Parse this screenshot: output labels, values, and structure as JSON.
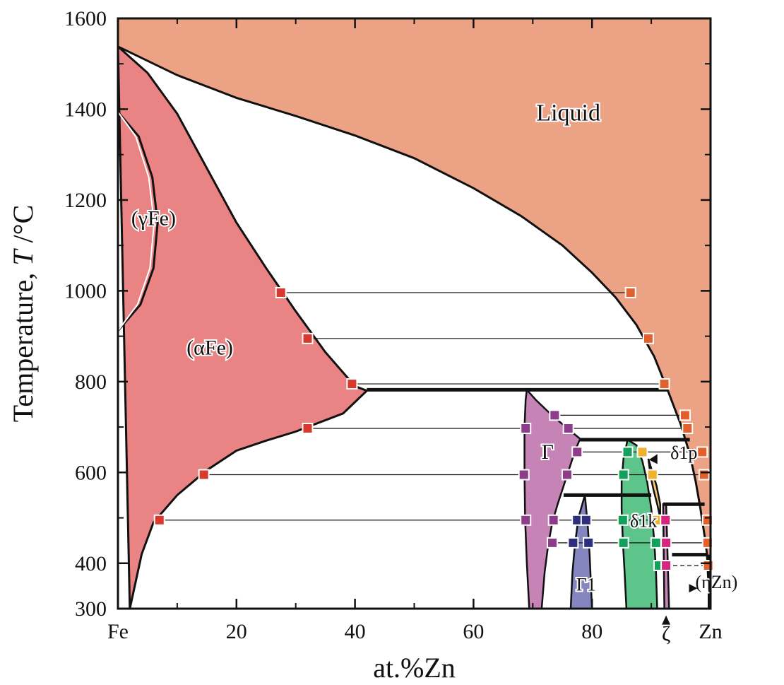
{
  "chart_data": {
    "type": "phase-diagram",
    "system": "Fe-Zn",
    "xlabel": "at.%Zn",
    "ylabel_prefix": "Temperature, ",
    "ylabel_symbol": "T",
    "ylabel_unit": " /°C",
    "xlim": [
      0,
      100
    ],
    "ylim": [
      300,
      1600
    ],
    "x_ticks": [
      {
        "value": 0,
        "label": "Fe"
      },
      {
        "value": 20,
        "label": "20"
      },
      {
        "value": 40,
        "label": "40"
      },
      {
        "value": 60,
        "label": "60"
      },
      {
        "value": 80,
        "label": "80"
      },
      {
        "value": 100,
        "label": "Zn"
      }
    ],
    "x_minor_ticks": [
      10,
      30,
      50,
      70,
      90
    ],
    "y_ticks": [
      {
        "value": 300,
        "label": "300"
      },
      {
        "value": 400,
        "label": "400"
      },
      {
        "value": 600,
        "label": "600"
      },
      {
        "value": 800,
        "label": "800"
      },
      {
        "value": 1000,
        "label": "1000"
      },
      {
        "value": 1200,
        "label": "1200"
      },
      {
        "value": 1400,
        "label": "1400"
      },
      {
        "value": 1600,
        "label": "1600"
      }
    ],
    "y_minor_ticks": [
      500,
      700,
      900,
      1100,
      1300,
      1500
    ],
    "colors": {
      "liquid": "#eca385",
      "alpha_fe": "#e98384",
      "gamma": "#c583b6",
      "gamma1": "#8585bf",
      "delta": "#5ec58a",
      "zeta": "#f3c877",
      "eta": "#eca385",
      "marker_red": "#d9382c",
      "marker_orange": "#e2602c",
      "marker_purple": "#8e3b8a",
      "marker_navy": "#2e2f7c",
      "marker_green": "#13a05c",
      "marker_yellow": "#f0b22e",
      "marker_pink": "#d6267f"
    },
    "phases": [
      {
        "label": "Liquid",
        "x": 76,
        "T": 1375,
        "size": "big"
      },
      {
        "label": "(γFe)",
        "x": 6,
        "T": 1145,
        "size": "mid"
      },
      {
        "label": "(αFe)",
        "x": 15.5,
        "T": 860,
        "size": "mid"
      },
      {
        "label": "Γ",
        "x": 72.5,
        "T": 630,
        "size": "mid"
      },
      {
        "label": "Γ1",
        "x": 79,
        "T": 340,
        "size": "small"
      },
      {
        "label": "δ1p",
        "x": 95.5,
        "T": 630,
        "size": "small"
      },
      {
        "label": "δ1k",
        "x": 88.7,
        "T": 480,
        "size": "small"
      },
      {
        "label": "ζ",
        "x": 92.5,
        "T": 230,
        "size": "mid"
      },
      {
        "label": "(ηZn)",
        "x": 101,
        "T": 345,
        "size": "small"
      }
    ],
    "liquidus": [
      [
        0,
        1538
      ],
      [
        10,
        1475
      ],
      [
        20,
        1425
      ],
      [
        30,
        1385
      ],
      [
        40,
        1342
      ],
      [
        50,
        1292
      ],
      [
        60,
        1226
      ],
      [
        68,
        1165
      ],
      [
        75,
        1100
      ],
      [
        80,
        1040
      ],
      [
        84,
        985
      ],
      [
        87.5,
        925
      ],
      [
        90.5,
        855
      ],
      [
        92.8,
        780
      ],
      [
        95,
        705
      ],
      [
        96.5,
        640
      ],
      [
        97.5,
        580
      ],
      [
        98.3,
        520
      ],
      [
        99,
        460
      ],
      [
        99.4,
        420
      ],
      [
        99.7,
        340
      ],
      [
        99.8,
        300
      ]
    ],
    "alpha_solvus": [
      [
        0,
        1538
      ],
      [
        5,
        1480
      ],
      [
        10,
        1390
      ],
      [
        15,
        1270
      ],
      [
        20,
        1150
      ],
      [
        25,
        1050
      ],
      [
        30,
        955
      ],
      [
        35,
        865
      ],
      [
        40,
        790
      ],
      [
        42,
        780
      ],
      [
        38,
        730
      ],
      [
        30,
        690
      ],
      [
        25,
        670
      ],
      [
        20,
        648
      ],
      [
        15,
        605
      ],
      [
        10,
        550
      ],
      [
        6,
        490
      ],
      [
        4,
        420
      ],
      [
        3,
        360
      ],
      [
        2,
        300
      ]
    ],
    "gamma_loop_outer": [
      [
        0,
        1394
      ],
      [
        3.5,
        1340
      ],
      [
        5.8,
        1250
      ],
      [
        6.7,
        1150
      ],
      [
        6.0,
        1050
      ],
      [
        3.8,
        970
      ],
      [
        0,
        912
      ]
    ],
    "gamma_loop_inner": [
      [
        0,
        1394
      ],
      [
        3.0,
        1340
      ],
      [
        5.2,
        1250
      ],
      [
        6.1,
        1150
      ],
      [
        5.4,
        1050
      ],
      [
        3.3,
        970
      ],
      [
        0,
        912
      ]
    ],
    "gamma_region": [
      [
        69.0,
        782
      ],
      [
        70.5,
        760
      ],
      [
        72.5,
        735
      ],
      [
        74.5,
        712
      ],
      [
        76.5,
        690
      ],
      [
        78.0,
        674
      ],
      [
        77.2,
        650
      ],
      [
        76.2,
        610
      ],
      [
        75.2,
        570
      ],
      [
        74.2,
        530
      ],
      [
        73.3,
        490
      ],
      [
        72.6,
        440
      ],
      [
        72.0,
        380
      ],
      [
        71.5,
        300
      ],
      [
        69.4,
        300
      ],
      [
        69.0,
        400
      ],
      [
        68.7,
        500
      ],
      [
        68.6,
        600
      ],
      [
        68.6,
        700
      ],
      [
        68.8,
        760
      ]
    ],
    "gamma1_region": [
      [
        78.8,
        550
      ],
      [
        79.3,
        480
      ],
      [
        79.6,
        420
      ],
      [
        79.8,
        360
      ],
      [
        80.0,
        300
      ],
      [
        76.4,
        300
      ],
      [
        76.7,
        380
      ],
      [
        77.1,
        440
      ],
      [
        77.7,
        500
      ]
    ],
    "delta_region": [
      [
        86.0,
        672
      ],
      [
        87.5,
        660
      ],
      [
        88.5,
        625
      ],
      [
        89.3,
        580
      ],
      [
        90.0,
        520
      ],
      [
        90.5,
        450
      ],
      [
        90.8,
        380
      ],
      [
        91.0,
        300
      ],
      [
        85.8,
        300
      ],
      [
        85.5,
        380
      ],
      [
        85.2,
        450
      ],
      [
        85.0,
        520
      ],
      [
        85.0,
        580
      ],
      [
        85.3,
        630
      ]
    ],
    "zeta_region": [
      [
        89.5,
        630
      ],
      [
        90.2,
        600
      ],
      [
        90.9,
        570
      ],
      [
        91.5,
        530
      ],
      [
        91.5,
        500
      ],
      [
        91.0,
        530
      ],
      [
        90.4,
        560
      ],
      [
        89.9,
        590
      ]
    ],
    "eta_sliver": [
      [
        92.5,
        530
      ],
      [
        93.0,
        300
      ],
      [
        92.2,
        300
      ],
      [
        92.0,
        530
      ]
    ],
    "invariants": [
      {
        "name": "peritectic",
        "T": 782,
        "x1": 42,
        "x2": 92.8
      },
      {
        "name": "peritectic",
        "T": 672,
        "x1": 78.0,
        "x2": 96.5
      },
      {
        "name": "peritectic",
        "T": 550,
        "x1": 75.2,
        "x2": 90.0
      },
      {
        "name": "peritectic",
        "T": 530,
        "x1": 92.0,
        "x2": 99.0
      },
      {
        "name": "eutectic",
        "T": 419,
        "x1": 93.5,
        "x2": 99.4
      }
    ],
    "tielines": [
      {
        "T": 996,
        "x1": 27.5,
        "x2": 86.5
      },
      {
        "T": 895,
        "x1": 32.0,
        "x2": 89.5
      },
      {
        "T": 795,
        "x1": 39.5,
        "x2": 92.2
      },
      {
        "T": 726,
        "x1": 73.7,
        "x2": 95.7
      },
      {
        "T": 697,
        "x1": 32.0,
        "x2": 68.8
      },
      {
        "T": 697,
        "x1": 76.0,
        "x2": 96.1
      },
      {
        "T": 645,
        "x1": 77.5,
        "x2": 98.6
      },
      {
        "T": 595,
        "x1": 14.5,
        "x2": 68.5
      },
      {
        "T": 595,
        "x1": 75.8,
        "x2": 98.9
      },
      {
        "T": 495,
        "x1": 7.0,
        "x2": 68.8
      },
      {
        "T": 495,
        "x1": 73.5,
        "x2": 99.5
      },
      {
        "T": 445,
        "x1": 73.3,
        "x2": 99.5
      },
      {
        "T": 395,
        "x1": 91.3,
        "x2": 99.6,
        "dashed": true
      }
    ],
    "points": [
      {
        "x": 27.5,
        "T": 996,
        "c": "marker_red"
      },
      {
        "x": 86.5,
        "T": 996,
        "c": "marker_orange"
      },
      {
        "x": 32.0,
        "T": 895,
        "c": "marker_red"
      },
      {
        "x": 89.5,
        "T": 895,
        "c": "marker_orange"
      },
      {
        "x": 39.5,
        "T": 795,
        "c": "marker_red"
      },
      {
        "x": 92.2,
        "T": 795,
        "c": "marker_orange"
      },
      {
        "x": 73.7,
        "T": 726,
        "c": "marker_purple"
      },
      {
        "x": 95.7,
        "T": 726,
        "c": "marker_orange"
      },
      {
        "x": 32.0,
        "T": 697,
        "c": "marker_red"
      },
      {
        "x": 68.8,
        "T": 697,
        "c": "marker_purple"
      },
      {
        "x": 76.0,
        "T": 697,
        "c": "marker_purple"
      },
      {
        "x": 96.1,
        "T": 697,
        "c": "marker_orange"
      },
      {
        "x": 77.5,
        "T": 645,
        "c": "marker_purple"
      },
      {
        "x": 86.0,
        "T": 645,
        "c": "marker_green"
      },
      {
        "x": 88.5,
        "T": 645,
        "c": "marker_yellow"
      },
      {
        "x": 98.6,
        "T": 645,
        "c": "marker_orange"
      },
      {
        "x": 14.5,
        "T": 595,
        "c": "marker_red"
      },
      {
        "x": 68.5,
        "T": 595,
        "c": "marker_purple"
      },
      {
        "x": 75.8,
        "T": 595,
        "c": "marker_purple"
      },
      {
        "x": 85.3,
        "T": 595,
        "c": "marker_green"
      },
      {
        "x": 90.2,
        "T": 595,
        "c": "marker_yellow"
      },
      {
        "x": 98.9,
        "T": 595,
        "c": "marker_orange"
      },
      {
        "x": 7.0,
        "T": 495,
        "c": "marker_red"
      },
      {
        "x": 68.8,
        "T": 495,
        "c": "marker_purple"
      },
      {
        "x": 73.5,
        "T": 495,
        "c": "marker_purple"
      },
      {
        "x": 77.5,
        "T": 495,
        "c": "marker_navy"
      },
      {
        "x": 79.0,
        "T": 495,
        "c": "marker_navy"
      },
      {
        "x": 85.2,
        "T": 495,
        "c": "marker_green"
      },
      {
        "x": 91.0,
        "T": 495,
        "c": "marker_yellow"
      },
      {
        "x": 92.4,
        "T": 495,
        "c": "marker_pink"
      },
      {
        "x": 99.5,
        "T": 495,
        "c": "marker_orange"
      },
      {
        "x": 73.3,
        "T": 445,
        "c": "marker_purple"
      },
      {
        "x": 76.8,
        "T": 445,
        "c": "marker_navy"
      },
      {
        "x": 79.4,
        "T": 445,
        "c": "marker_navy"
      },
      {
        "x": 85.3,
        "T": 445,
        "c": "marker_green"
      },
      {
        "x": 90.8,
        "T": 445,
        "c": "marker_green"
      },
      {
        "x": 92.5,
        "T": 445,
        "c": "marker_pink"
      },
      {
        "x": 99.5,
        "T": 445,
        "c": "marker_orange"
      },
      {
        "x": 91.3,
        "T": 395,
        "c": "marker_green"
      },
      {
        "x": 92.5,
        "T": 395,
        "c": "marker_pink"
      },
      {
        "x": 99.6,
        "T": 395,
        "c": "marker_orange"
      }
    ]
  }
}
